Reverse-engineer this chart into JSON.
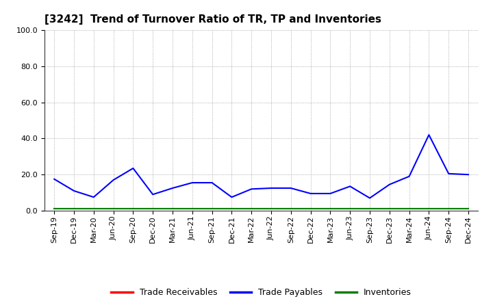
{
  "title": "[3242]  Trend of Turnover Ratio of TR, TP and Inventories",
  "x_labels": [
    "Sep-19",
    "Dec-19",
    "Mar-20",
    "Jun-20",
    "Sep-20",
    "Dec-20",
    "Mar-21",
    "Jun-21",
    "Sep-21",
    "Dec-21",
    "Mar-22",
    "Jun-22",
    "Sep-22",
    "Dec-22",
    "Mar-23",
    "Jun-23",
    "Sep-23",
    "Dec-23",
    "Mar-24",
    "Jun-24",
    "Sep-24",
    "Dec-24"
  ],
  "trade_receivables": [
    1.0,
    1.0,
    1.0,
    1.0,
    1.0,
    1.0,
    1.0,
    1.0,
    1.0,
    1.0,
    1.0,
    1.0,
    1.0,
    1.0,
    1.0,
    1.0,
    1.0,
    1.0,
    1.0,
    1.0,
    1.0,
    1.0
  ],
  "trade_payables": [
    17.5,
    11.0,
    7.5,
    17.0,
    23.5,
    9.0,
    12.5,
    15.5,
    15.5,
    7.5,
    12.0,
    12.5,
    12.5,
    9.5,
    9.5,
    13.5,
    7.0,
    14.5,
    19.0,
    42.0,
    20.5,
    20.0
  ],
  "inventories": [
    1.0,
    1.0,
    1.0,
    1.0,
    1.0,
    1.0,
    1.0,
    1.0,
    1.0,
    1.0,
    1.0,
    1.0,
    1.0,
    1.0,
    1.0,
    1.0,
    1.0,
    1.0,
    1.0,
    1.0,
    1.0,
    1.0
  ],
  "ylim": [
    0.0,
    100.0
  ],
  "yticks": [
    0.0,
    20.0,
    40.0,
    60.0,
    80.0,
    100.0
  ],
  "color_tr": "#ff0000",
  "color_tp": "#0000ff",
  "color_inv": "#008000",
  "legend_labels": [
    "Trade Receivables",
    "Trade Payables",
    "Inventories"
  ],
  "bg_color": "#ffffff",
  "plot_bg_color": "#ffffff",
  "title_fontsize": 11,
  "tick_fontsize": 8,
  "linewidth": 1.5
}
